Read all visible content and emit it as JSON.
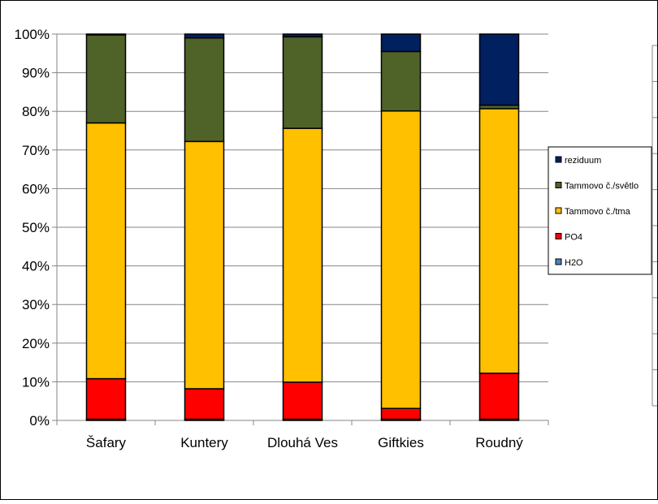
{
  "chart_data": {
    "type": "bar",
    "stacked": "percent",
    "categories": [
      "Šafary",
      "Kuntery",
      "Dlouhá Ves",
      "Giftkies",
      "Roudný"
    ],
    "series": [
      {
        "name": "H2O",
        "color": "#4F81BD",
        "values": [
          0.3,
          0.3,
          0.3,
          0.3,
          0.3
        ]
      },
      {
        "name": "PO4",
        "color": "#FF0000",
        "values": [
          10.5,
          7.9,
          9.6,
          2.8,
          11.9
        ]
      },
      {
        "name": "Tammovo č./tma",
        "color": "#FFC000",
        "values": [
          66.2,
          64.0,
          65.7,
          77.0,
          68.5
        ]
      },
      {
        "name": "Tammovo č./světlo",
        "color": "#4F6228",
        "values": [
          22.8,
          26.8,
          23.7,
          15.4,
          0.9
        ]
      },
      {
        "name": "reziduum",
        "color": "#002060",
        "values": [
          0.2,
          1.0,
          0.7,
          4.5,
          18.4
        ]
      }
    ],
    "yticks": [
      "0%",
      "10%",
      "20%",
      "30%",
      "40%",
      "50%",
      "60%",
      "70%",
      "80%",
      "90%",
      "100%"
    ],
    "ylim": [
      0,
      100
    ],
    "grid": true,
    "legend": "right",
    "legend_order": [
      "reziduum",
      "Tammovo č./světlo",
      "Tammovo č./tma",
      "PO4",
      "H2O"
    ]
  }
}
